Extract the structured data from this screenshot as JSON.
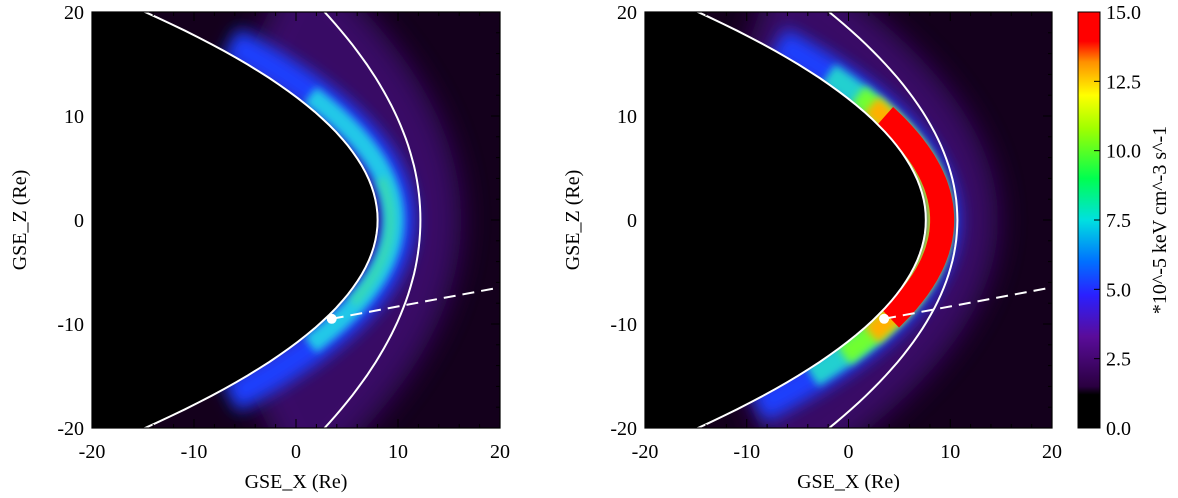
{
  "chart_data": [
    {
      "type": "heatmap",
      "xlabel": "GSE_X (Re)",
      "ylabel": "GSE_Z (Re)",
      "xlim": [
        -20,
        20
      ],
      "ylim": [
        -20,
        20
      ],
      "xticks": [
        -20,
        -10,
        0,
        10,
        20
      ],
      "yticks": [
        -20,
        -10,
        0,
        10,
        20
      ]
    },
    {
      "type": "heatmap",
      "xlabel": "GSE_X (Re)",
      "ylabel": "GSE_Z (Re)",
      "xlim": [
        -20,
        20
      ],
      "ylim": [
        -20,
        20
      ],
      "xticks": [
        -20,
        -10,
        0,
        10,
        20
      ],
      "yticks": [
        -20,
        -10,
        0,
        10,
        20
      ],
      "colorbar": {
        "label": "*10^-5 keV cm^-3 s^-1",
        "lim": [
          0,
          15
        ],
        "ticks": [
          {
            "value": 0,
            "label": "0.0"
          },
          2.5,
          {
            "value": 5,
            "label": "5.0"
          },
          7.5,
          {
            "value": 10,
            "label": "10.0"
          },
          12.5,
          {
            "value": 15,
            "label": "15.0"
          }
        ]
      }
    }
  ]
}
